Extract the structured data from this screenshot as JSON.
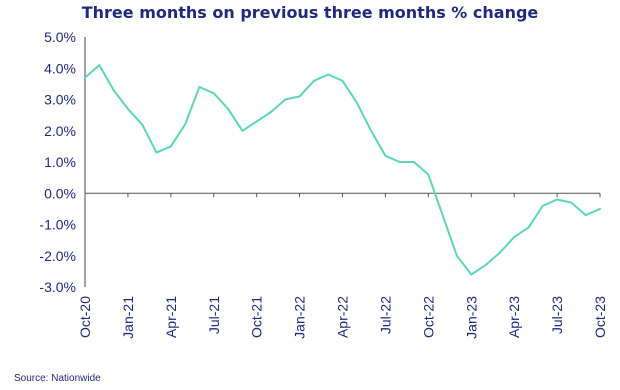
{
  "chart_data": {
    "type": "line",
    "title": "Three months on previous three months % change",
    "source": "Source: Nationwide",
    "ylim": [
      -3.0,
      5.0
    ],
    "y_ticks": [
      5.0,
      4.0,
      3.0,
      2.0,
      1.0,
      0.0,
      -1.0,
      -2.0,
      -3.0
    ],
    "y_tick_labels": [
      "5.0%",
      "4.0%",
      "3.0%",
      "2.0%",
      "1.0%",
      "0.0%",
      "-1.0%",
      "-2.0%",
      "-3.0%"
    ],
    "x_tick_labels": [
      "Oct-20",
      "Jan-21",
      "Apr-21",
      "Jul-21",
      "Oct-21",
      "Jan-22",
      "Apr-22",
      "Jul-22",
      "Oct-22",
      "Jan-23",
      "Apr-23",
      "Jul-23",
      "Oct-23"
    ],
    "x": [
      "Oct-20",
      "Nov-20",
      "Dec-20",
      "Jan-21",
      "Feb-21",
      "Mar-21",
      "Apr-21",
      "May-21",
      "Jun-21",
      "Jul-21",
      "Aug-21",
      "Sep-21",
      "Oct-21",
      "Nov-21",
      "Dec-21",
      "Jan-22",
      "Feb-22",
      "Mar-22",
      "Apr-22",
      "May-22",
      "Jun-22",
      "Jul-22",
      "Aug-22",
      "Sep-22",
      "Oct-22",
      "Nov-22",
      "Dec-22",
      "Jan-23",
      "Feb-23",
      "Mar-23",
      "Apr-23",
      "May-23",
      "Jun-23",
      "Jul-23",
      "Aug-23",
      "Sep-23",
      "Oct-23"
    ],
    "series": [
      {
        "color": "#5cd6b4",
        "values": [
          3.7,
          4.1,
          3.3,
          2.7,
          2.2,
          1.3,
          1.5,
          2.2,
          3.4,
          3.2,
          2.7,
          2.0,
          2.3,
          2.6,
          3.0,
          3.1,
          3.6,
          3.8,
          3.6,
          2.9,
          2.0,
          1.2,
          1.0,
          1.0,
          0.6,
          -0.7,
          -2.0,
          -2.6,
          -2.3,
          -1.9,
          -1.4,
          -1.1,
          -0.4,
          -0.2,
          -0.3,
          -0.7,
          -0.5
        ]
      }
    ],
    "grid": false,
    "zero_line": true
  }
}
